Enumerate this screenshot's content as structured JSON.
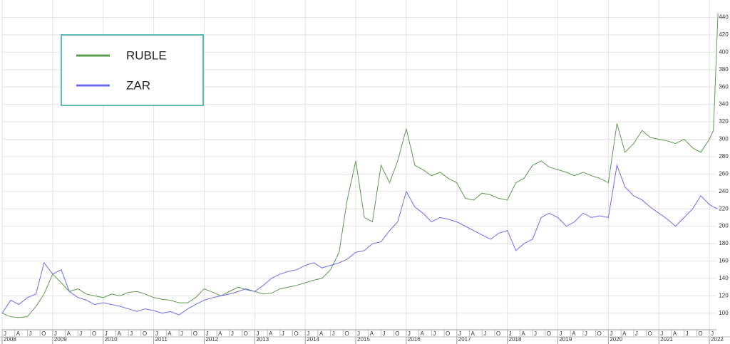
{
  "chart_data": {
    "type": "line",
    "x": [
      2008.0,
      2008.17,
      2008.33,
      2008.5,
      2008.67,
      2008.83,
      2009.0,
      2009.17,
      2009.33,
      2009.5,
      2009.67,
      2009.83,
      2010.0,
      2010.17,
      2010.33,
      2010.5,
      2010.67,
      2010.83,
      2011.0,
      2011.17,
      2011.33,
      2011.5,
      2011.67,
      2011.83,
      2012.0,
      2012.17,
      2012.33,
      2012.5,
      2012.67,
      2012.83,
      2013.0,
      2013.17,
      2013.33,
      2013.5,
      2013.67,
      2013.83,
      2014.0,
      2014.17,
      2014.33,
      2014.5,
      2014.67,
      2014.83,
      2015.0,
      2015.17,
      2015.33,
      2015.5,
      2015.67,
      2015.83,
      2016.0,
      2016.17,
      2016.33,
      2016.5,
      2016.67,
      2016.83,
      2017.0,
      2017.17,
      2017.33,
      2017.5,
      2017.67,
      2017.83,
      2018.0,
      2018.17,
      2018.33,
      2018.5,
      2018.67,
      2018.83,
      2019.0,
      2019.17,
      2019.33,
      2019.5,
      2019.67,
      2019.83,
      2020.0,
      2020.17,
      2020.33,
      2020.5,
      2020.67,
      2020.83,
      2021.0,
      2021.17,
      2021.33,
      2021.5,
      2021.67,
      2021.83,
      2022.0,
      2022.08,
      2022.17
    ],
    "series": [
      {
        "name": "RUBLE",
        "color": "#5b9b4b",
        "values": [
          100,
          96,
          95,
          96,
          108,
          122,
          145,
          135,
          125,
          128,
          122,
          120,
          118,
          122,
          120,
          124,
          125,
          122,
          118,
          116,
          115,
          112,
          112,
          118,
          128,
          124,
          120,
          125,
          130,
          127,
          125,
          122,
          123,
          128,
          130,
          132,
          135,
          138,
          140,
          150,
          170,
          230,
          275,
          210,
          205,
          270,
          250,
          275,
          312,
          270,
          265,
          258,
          262,
          255,
          250,
          232,
          230,
          238,
          236,
          232,
          230,
          250,
          255,
          270,
          275,
          268,
          265,
          262,
          258,
          262,
          258,
          255,
          250,
          318,
          285,
          295,
          310,
          302,
          300,
          298,
          295,
          300,
          290,
          285,
          300,
          310,
          445
        ]
      },
      {
        "name": "ZAR",
        "color": "#6b6bf0",
        "values": [
          100,
          115,
          110,
          118,
          122,
          158,
          145,
          150,
          125,
          118,
          115,
          110,
          112,
          110,
          108,
          105,
          102,
          105,
          103,
          100,
          102,
          98,
          105,
          110,
          115,
          118,
          120,
          122,
          125,
          128,
          125,
          132,
          140,
          145,
          148,
          150,
          155,
          158,
          152,
          155,
          158,
          162,
          170,
          172,
          180,
          182,
          195,
          205,
          240,
          222,
          215,
          205,
          210,
          208,
          205,
          200,
          195,
          190,
          185,
          192,
          195,
          172,
          180,
          185,
          210,
          215,
          210,
          200,
          205,
          215,
          210,
          212,
          210,
          270,
          245,
          235,
          230,
          222,
          215,
          208,
          200,
          210,
          220,
          235,
          225,
          222,
          220
        ]
      }
    ],
    "xlim": [
      2008,
      2022.14
    ],
    "ylim": [
      81,
      460
    ],
    "yticks": [
      100,
      120,
      140,
      160,
      180,
      200,
      220,
      240,
      260,
      280,
      300,
      320,
      340,
      360,
      380,
      400,
      420,
      440
    ],
    "xticks": [
      {
        "value": 2008,
        "label": "J"
      },
      {
        "value": 2008.25,
        "label": "A"
      },
      {
        "value": 2008.5,
        "label": "J"
      },
      {
        "value": 2008.75,
        "label": "O"
      },
      {
        "value": 2009,
        "label": "J"
      },
      {
        "value": 2009.25,
        "label": "A"
      },
      {
        "value": 2009.5,
        "label": "J"
      },
      {
        "value": 2009.75,
        "label": "O"
      },
      {
        "value": 2010,
        "label": "J"
      },
      {
        "value": 2010.25,
        "label": "A"
      },
      {
        "value": 2010.5,
        "label": "J"
      },
      {
        "value": 2010.75,
        "label": "O"
      },
      {
        "value": 2011,
        "label": "J"
      },
      {
        "value": 2011.25,
        "label": "A"
      },
      {
        "value": 2011.5,
        "label": "J"
      },
      {
        "value": 2011.75,
        "label": "O"
      },
      {
        "value": 2012,
        "label": "J"
      },
      {
        "value": 2012.25,
        "label": "A"
      },
      {
        "value": 2012.5,
        "label": "J"
      },
      {
        "value": 2012.75,
        "label": "O"
      },
      {
        "value": 2013,
        "label": "J"
      },
      {
        "value": 2013.25,
        "label": "A"
      },
      {
        "value": 2013.5,
        "label": "J"
      },
      {
        "value": 2013.75,
        "label": "O"
      },
      {
        "value": 2014,
        "label": "J"
      },
      {
        "value": 2014.25,
        "label": "A"
      },
      {
        "value": 2014.5,
        "label": "J"
      },
      {
        "value": 2014.75,
        "label": "O"
      },
      {
        "value": 2015,
        "label": "J"
      },
      {
        "value": 2015.25,
        "label": "A"
      },
      {
        "value": 2015.5,
        "label": "J"
      },
      {
        "value": 2015.75,
        "label": "O"
      },
      {
        "value": 2016,
        "label": "J"
      },
      {
        "value": 2016.25,
        "label": "A"
      },
      {
        "value": 2016.5,
        "label": "J"
      },
      {
        "value": 2016.75,
        "label": "O"
      },
      {
        "value": 2017,
        "label": "J"
      },
      {
        "value": 2017.25,
        "label": "A"
      },
      {
        "value": 2017.5,
        "label": "J"
      },
      {
        "value": 2017.75,
        "label": "O"
      },
      {
        "value": 2018,
        "label": "J"
      },
      {
        "value": 2018.25,
        "label": "A"
      },
      {
        "value": 2018.5,
        "label": "J"
      },
      {
        "value": 2018.75,
        "label": "O"
      },
      {
        "value": 2019,
        "label": "J"
      },
      {
        "value": 2019.25,
        "label": "A"
      },
      {
        "value": 2019.5,
        "label": "J"
      },
      {
        "value": 2019.75,
        "label": "O"
      },
      {
        "value": 2020,
        "label": "J"
      },
      {
        "value": 2020.25,
        "label": "A"
      },
      {
        "value": 2020.5,
        "label": "J"
      },
      {
        "value": 2020.75,
        "label": "O"
      },
      {
        "value": 2021,
        "label": "J"
      },
      {
        "value": 2021.25,
        "label": "A"
      },
      {
        "value": 2021.5,
        "label": "J"
      },
      {
        "value": 2021.75,
        "label": "O"
      },
      {
        "value": 2022,
        "label": "J"
      }
    ],
    "year_ticks": [
      2008,
      2009,
      2010,
      2011,
      2012,
      2013,
      2014,
      2015,
      2016,
      2017,
      2018,
      2019,
      2020,
      2021,
      2022
    ],
    "grid": true,
    "legend": "upper-left"
  }
}
